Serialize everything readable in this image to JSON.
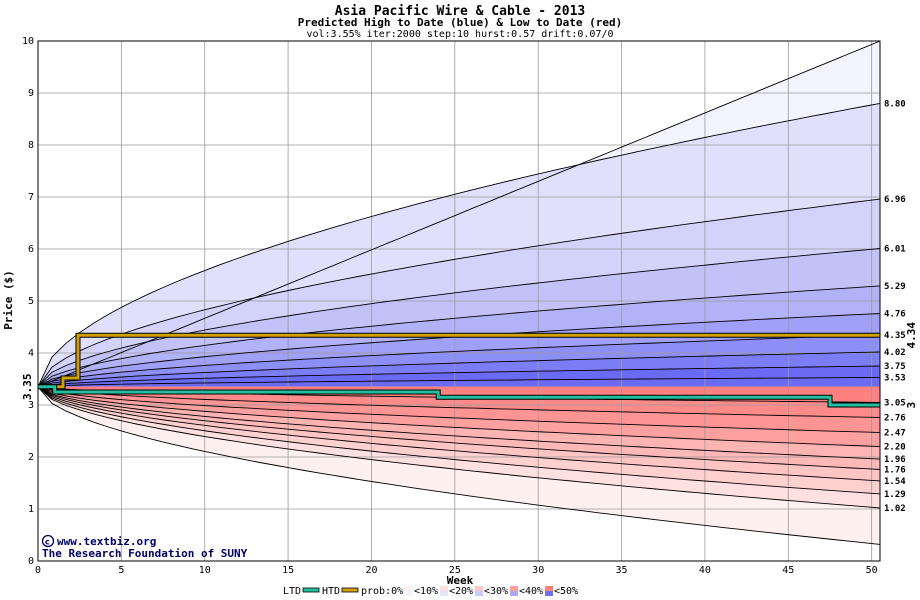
{
  "chart_data": {
    "type": "area",
    "title": "Asia Pacific Wire & Cable - 2013",
    "subtitle": "Predicted High to Date (blue) &  Low to Date (red)",
    "params": "vol:3.55% iter:2000 step:10 hurst:0.57 drift:0.07/0",
    "xlabel": "Week",
    "ylabel": "Price ($)",
    "xlim": [
      0,
      50.5
    ],
    "ylim": [
      0,
      10
    ],
    "x_ticks": [
      0,
      5,
      10,
      15,
      20,
      25,
      30,
      35,
      40,
      45,
      50
    ],
    "y_ticks": [
      0,
      1,
      2,
      3,
      4,
      5,
      6,
      7,
      8,
      9,
      10
    ],
    "grid": true,
    "start_price": 3.35,
    "start_price_label": "3.35",
    "high_percentile_curves": [
      {
        "final": 10.0,
        "k": 1.0
      },
      {
        "final": 8.8,
        "label": "8.80"
      },
      {
        "final": 6.96,
        "label": "6.96"
      },
      {
        "final": 6.01,
        "label": "6.01"
      },
      {
        "final": 5.29,
        "label": "5.29"
      },
      {
        "final": 4.76,
        "label": "4.76"
      },
      {
        "final": 4.35,
        "label": "4.35"
      },
      {
        "final": 4.02,
        "label": "4.02"
      },
      {
        "final": 3.75,
        "label": "3.75"
      },
      {
        "final": 3.53,
        "label": "3.53"
      }
    ],
    "low_percentile_curves": [
      {
        "final": 3.05,
        "label": "3.05"
      },
      {
        "final": 2.76,
        "label": "2.76"
      },
      {
        "final": 2.47,
        "label": "2.47"
      },
      {
        "final": 2.2,
        "label": "2.20"
      },
      {
        "final": 1.96,
        "label": "1.96"
      },
      {
        "final": 1.76,
        "label": "1.76"
      },
      {
        "final": 1.54,
        "label": "1.54"
      },
      {
        "final": 1.29,
        "label": "1.29"
      },
      {
        "final": 1.02,
        "label": "1.02"
      },
      {
        "final": 0.32
      }
    ],
    "htd_series": {
      "name": "HTD",
      "points": [
        [
          0,
          3.35
        ],
        [
          1.5,
          3.35
        ],
        [
          1.5,
          3.52
        ],
        [
          2.4,
          3.52
        ],
        [
          2.4,
          4.34
        ],
        [
          50.5,
          4.34
        ]
      ],
      "end_label": "4.34"
    },
    "ltd_series": {
      "name": "LTD",
      "points": [
        [
          0,
          3.35
        ],
        [
          1,
          3.35
        ],
        [
          1,
          3.25
        ],
        [
          24,
          3.25
        ],
        [
          24,
          3.15
        ],
        [
          47.5,
          3.15
        ],
        [
          47.5,
          3.0
        ],
        [
          50.5,
          3.0
        ]
      ],
      "end_label": "3"
    },
    "legend": {
      "items": [
        {
          "name": "LTD",
          "color": "#20c0a0"
        },
        {
          "name": "HTD",
          "color": "#d0a000"
        }
      ],
      "prob_prefix": "prob:0%",
      "prob_bins": [
        "<10%",
        "<20%",
        "<30%",
        "<40%",
        "<50%"
      ]
    },
    "colors": {
      "blue_bands": [
        "#f4f4ff",
        "#e0e0fc",
        "#d2d2fa",
        "#c2c2f9",
        "#b2b2f8",
        "#a0a0f8",
        "#8e8ef8",
        "#7c7cf6",
        "#6a6af4"
      ],
      "red_bands": [
        "#ffb4b4",
        "#ffa0a0",
        "#ff9494",
        "#ff8a8a",
        "#ff8080"
      ],
      "red_light": [
        "#fff0f0",
        "#ffe0e0",
        "#ffd0d0",
        "#ffc4c4",
        "#ffb8b8"
      ],
      "htd": "#d0a000",
      "ltd": "#20c0a0",
      "htd_label": "#9a6a00",
      "ltd_label": "#008060"
    }
  },
  "footer": {
    "credit_line1": "www.textbiz.org",
    "credit_line2": "The Research Foundation of SUNY",
    "copyright_symbol": "©"
  }
}
